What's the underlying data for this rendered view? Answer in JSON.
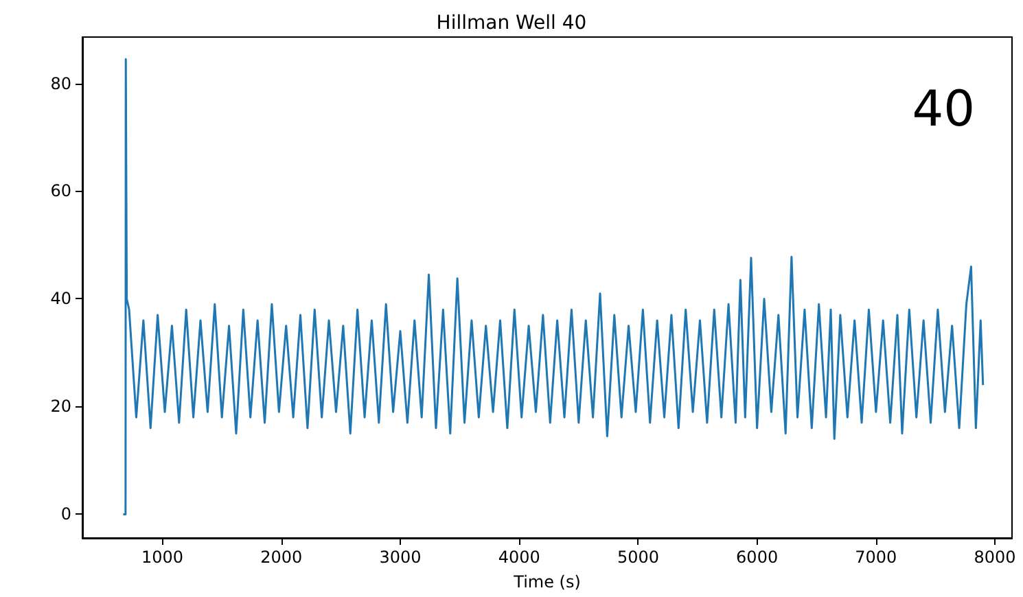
{
  "chart_data": {
    "type": "line",
    "title": "Hillman Well 40",
    "xlabel": "Time (s)",
    "annotations": [
      "40"
    ],
    "xlim": [
      327,
      8144
    ],
    "xticks": [
      1000,
      2000,
      3000,
      4000,
      5000,
      6000,
      7000,
      8000
    ],
    "ylim": [
      -4.4,
      88.6
    ],
    "yticks": [
      0,
      20,
      40,
      60,
      80
    ],
    "marker": "none",
    "line_style": "solid",
    "series": [
      {
        "color": "#1f77b4",
        "x": [
          670,
          690,
          692,
          700,
          720,
          780,
          840,
          900,
          960,
          1020,
          1080,
          1140,
          1200,
          1260,
          1320,
          1380,
          1440,
          1500,
          1560,
          1620,
          1680,
          1740,
          1800,
          1860,
          1920,
          1980,
          2040,
          2100,
          2160,
          2220,
          2280,
          2340,
          2400,
          2460,
          2520,
          2580,
          2640,
          2700,
          2760,
          2820,
          2880,
          2940,
          3000,
          3060,
          3120,
          3180,
          3240,
          3300,
          3360,
          3420,
          3480,
          3540,
          3600,
          3660,
          3720,
          3780,
          3840,
          3900,
          3960,
          4020,
          4080,
          4140,
          4200,
          4260,
          4320,
          4380,
          4440,
          4500,
          4560,
          4620,
          4680,
          4740,
          4800,
          4860,
          4920,
          4980,
          5040,
          5100,
          5160,
          5220,
          5280,
          5340,
          5400,
          5460,
          5520,
          5580,
          5640,
          5700,
          5760,
          5820,
          5860,
          5900,
          5950,
          6000,
          6060,
          6120,
          6180,
          6240,
          6290,
          6340,
          6400,
          6460,
          6520,
          6580,
          6620,
          6650,
          6700,
          6760,
          6820,
          6880,
          6940,
          7000,
          7060,
          7120,
          7180,
          7220,
          7280,
          7340,
          7400,
          7460,
          7520,
          7580,
          7640,
          7700,
          7760,
          7800,
          7840,
          7880,
          7900
        ],
        "values": [
          0,
          0,
          84.5,
          40,
          38,
          18,
          36,
          16,
          37,
          19,
          35,
          17,
          38,
          18,
          36,
          19,
          39,
          18,
          35,
          15,
          38,
          18,
          36,
          17,
          39,
          19,
          35,
          18,
          37,
          16,
          38,
          18,
          36,
          19,
          35,
          15,
          38,
          18,
          36,
          17,
          39,
          19,
          34,
          17,
          36,
          18,
          44.5,
          16,
          38,
          15,
          43.8,
          17,
          36,
          18,
          35,
          19,
          36,
          16,
          38,
          18,
          35,
          19,
          37,
          17,
          36,
          18,
          38,
          17,
          36,
          18,
          41,
          14.5,
          37,
          18,
          35,
          19,
          38,
          17,
          36,
          18,
          37,
          16,
          38,
          19,
          36,
          17,
          38,
          18,
          39,
          17,
          43.5,
          18,
          47.6,
          16,
          40,
          19,
          37,
          15,
          47.8,
          18,
          38,
          16,
          39,
          18,
          38,
          14,
          37,
          18,
          36,
          17,
          38,
          19,
          36,
          17,
          37,
          15,
          38,
          18,
          36,
          17,
          38,
          19,
          35,
          16,
          39,
          46,
          16,
          36,
          24
        ]
      }
    ]
  }
}
